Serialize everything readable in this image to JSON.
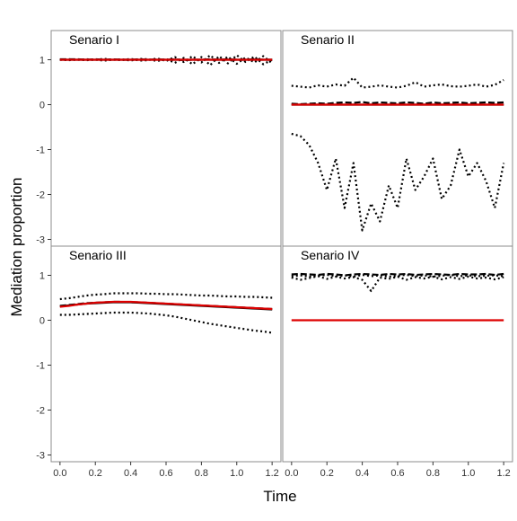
{
  "chart_data": {
    "type": "line",
    "xlabel": "Time",
    "ylabel": "Mediation proportion",
    "xlim": [
      -0.05,
      1.25
    ],
    "ylim": [
      -3.15,
      1.65
    ],
    "x_ticks": [
      0.0,
      0.2,
      0.4,
      0.6,
      0.8,
      1.0,
      1.2
    ],
    "x_tick_labels": [
      "0.0",
      "0.2",
      "0.4",
      "0.6",
      "0.8",
      "1.0",
      "1.2"
    ],
    "y_ticks": [
      1,
      0,
      -1,
      -2,
      -3
    ],
    "y_tick_labels": [
      "1",
      "0",
      "-1",
      "-2",
      "-3"
    ],
    "grid": false,
    "colors": {
      "true_value": "#dd0000",
      "estimate": "#000000"
    },
    "x": [
      0.0,
      0.05,
      0.1,
      0.15,
      0.2,
      0.25,
      0.3,
      0.35,
      0.4,
      0.45,
      0.5,
      0.55,
      0.6,
      0.65,
      0.7,
      0.75,
      0.8,
      0.85,
      0.9,
      0.95,
      1.0,
      1.05,
      1.1,
      1.15,
      1.2
    ],
    "panels": [
      {
        "title": "Senario I",
        "series": [
          {
            "style": "solid-red",
            "values": [
              1,
              1,
              1,
              1,
              1,
              1,
              1,
              1,
              1,
              1,
              1,
              1,
              1,
              1,
              1,
              1,
              1,
              1,
              1,
              1,
              1,
              1,
              1,
              1,
              1
            ]
          },
          {
            "style": "solid-black",
            "values": [
              1,
              1,
              1,
              1,
              1,
              1,
              1,
              1,
              1,
              1,
              1,
              1,
              1,
              1,
              1,
              1,
              1,
              1,
              1,
              1,
              1,
              1,
              1,
              1,
              1
            ]
          },
          {
            "style": "dashed",
            "values": [
              1.01,
              1.01,
              1.01,
              1.0,
              1.01,
              1.0,
              1.01,
              1.0,
              1.0,
              1.01,
              1.0,
              1.01,
              1.0,
              1.01,
              0.99,
              1.0,
              1.0,
              1.01,
              1.0,
              1.01,
              1.0,
              1.0,
              1.01,
              1.0,
              1.0
            ]
          },
          {
            "style": "dotted",
            "values": [
              1.0,
              1.01,
              1.0,
              1.01,
              1.0,
              1.02,
              1.0,
              1.01,
              0.98,
              1.02,
              1.01,
              0.97,
              1.02,
              0.93,
              1.04,
              0.9,
              1.06,
              0.88,
              1.08,
              0.92,
              1.1,
              0.95,
              1.07,
              0.9,
              1.0
            ]
          },
          {
            "style": "dotted",
            "values": [
              1.0,
              0.99,
              1.0,
              0.99,
              1.0,
              0.98,
              1.0,
              0.99,
              1.02,
              0.98,
              0.99,
              1.03,
              0.97,
              1.06,
              0.95,
              1.08,
              0.94,
              1.1,
              0.93,
              1.07,
              0.91,
              1.05,
              0.94,
              1.08,
              0.92
            ]
          }
        ]
      },
      {
        "title": "Senario II",
        "series": [
          {
            "style": "solid-red",
            "values": [
              0,
              0,
              0,
              0,
              0,
              0,
              0,
              0,
              0,
              0,
              0,
              0,
              0,
              0,
              0,
              0,
              0,
              0,
              0,
              0,
              0,
              0,
              0,
              0,
              0
            ]
          },
          {
            "style": "solid-black",
            "values": [
              0.0,
              0.0,
              0.0,
              0.0,
              0.0,
              0.0,
              0.0,
              0.0,
              0.0,
              0.0,
              0.0,
              0.0,
              0.0,
              0.0,
              0.0,
              0.0,
              0.0,
              0.0,
              0.0,
              0.0,
              0.0,
              0.0,
              0.0,
              0.0,
              0.0
            ]
          },
          {
            "style": "dashed",
            "values": [
              0.02,
              0.01,
              0.02,
              0.03,
              0.02,
              0.04,
              0.05,
              0.04,
              0.06,
              0.03,
              0.05,
              0.04,
              0.03,
              0.05,
              0.04,
              0.02,
              0.05,
              0.03,
              0.04,
              0.05,
              0.03,
              0.04,
              0.05,
              0.04,
              0.05
            ]
          },
          {
            "style": "dotted",
            "values": [
              0.42,
              0.4,
              0.38,
              0.43,
              0.4,
              0.45,
              0.42,
              0.6,
              0.38,
              0.4,
              0.43,
              0.4,
              0.38,
              0.42,
              0.5,
              0.4,
              0.43,
              0.45,
              0.41,
              0.4,
              0.42,
              0.45,
              0.4,
              0.44,
              0.55
            ]
          },
          {
            "style": "dotted",
            "values": [
              -0.65,
              -0.7,
              -0.9,
              -1.3,
              -1.9,
              -1.2,
              -2.3,
              -1.3,
              -2.8,
              -2.2,
              -2.6,
              -1.8,
              -2.3,
              -1.2,
              -1.9,
              -1.6,
              -1.2,
              -2.1,
              -1.8,
              -1.0,
              -1.6,
              -1.3,
              -1.7,
              -2.3,
              -1.3
            ]
          }
        ]
      },
      {
        "title": "Senario III",
        "series": [
          {
            "style": "solid-red",
            "values": [
              0.3,
              0.32,
              0.35,
              0.37,
              0.39,
              0.4,
              0.41,
              0.41,
              0.41,
              0.4,
              0.39,
              0.38,
              0.37,
              0.36,
              0.35,
              0.34,
              0.33,
              0.32,
              0.31,
              0.3,
              0.29,
              0.28,
              0.27,
              0.26,
              0.25
            ]
          },
          {
            "style": "solid-black",
            "values": [
              0.31,
              0.33,
              0.35,
              0.37,
              0.38,
              0.39,
              0.4,
              0.4,
              0.4,
              0.39,
              0.38,
              0.37,
              0.36,
              0.35,
              0.34,
              0.33,
              0.32,
              0.31,
              0.3,
              0.29,
              0.28,
              0.27,
              0.26,
              0.25,
              0.24
            ]
          },
          {
            "style": "dashed",
            "values": [
              0.32,
              0.34,
              0.36,
              0.38,
              0.39,
              0.4,
              0.41,
              0.41,
              0.4,
              0.4,
              0.39,
              0.38,
              0.37,
              0.36,
              0.35,
              0.34,
              0.33,
              0.32,
              0.31,
              0.3,
              0.29,
              0.28,
              0.27,
              0.26,
              0.25
            ]
          },
          {
            "style": "dotted",
            "values": [
              0.47,
              0.49,
              0.52,
              0.55,
              0.57,
              0.58,
              0.6,
              0.6,
              0.6,
              0.6,
              0.59,
              0.59,
              0.58,
              0.58,
              0.57,
              0.56,
              0.55,
              0.55,
              0.54,
              0.53,
              0.53,
              0.52,
              0.52,
              0.51,
              0.5
            ]
          },
          {
            "style": "dotted",
            "values": [
              0.12,
              0.12,
              0.13,
              0.14,
              0.15,
              0.16,
              0.17,
              0.17,
              0.17,
              0.16,
              0.15,
              0.13,
              0.11,
              0.08,
              0.04,
              0.0,
              -0.04,
              -0.08,
              -0.11,
              -0.14,
              -0.17,
              -0.2,
              -0.23,
              -0.25,
              -0.28
            ]
          }
        ]
      },
      {
        "title": "Senario IV",
        "series": [
          {
            "style": "solid-red",
            "values": [
              0,
              0,
              0,
              0,
              0,
              0,
              0,
              0,
              0,
              0,
              0,
              0,
              0,
              0,
              0,
              0,
              0,
              0,
              0,
              0,
              0,
              0,
              0,
              0,
              0
            ]
          },
          {
            "style": "dashed",
            "values": [
              1.02,
              1.03,
              1.02,
              1.01,
              1.03,
              1.02,
              1.0,
              1.02,
              1.03,
              1.02,
              1.01,
              1.03,
              1.02,
              1.03,
              1.01,
              1.02,
              1.03,
              1.02,
              1.01,
              1.03,
              1.02,
              1.02,
              1.03,
              1.01,
              1.03
            ]
          },
          {
            "style": "dotted",
            "values": [
              0.95,
              0.9,
              0.94,
              0.98,
              0.92,
              0.97,
              0.93,
              0.96,
              0.9,
              0.65,
              0.95,
              0.92,
              0.97,
              0.9,
              0.96,
              0.93,
              0.97,
              0.91,
              0.96,
              0.92,
              0.97,
              0.93,
              0.95,
              0.91,
              0.96
            ]
          },
          {
            "style": "dotted",
            "values": [
              0.98,
              1.0,
              0.97,
              0.99,
              1.01,
              0.98,
              1.0,
              0.97,
              1.01,
              0.98,
              1.0,
              0.97,
              0.99,
              1.01,
              0.98,
              1.0,
              0.97,
              0.99,
              1.01,
              0.98,
              1.0,
              0.98,
              0.99,
              1.0,
              0.98
            ]
          }
        ]
      }
    ]
  }
}
